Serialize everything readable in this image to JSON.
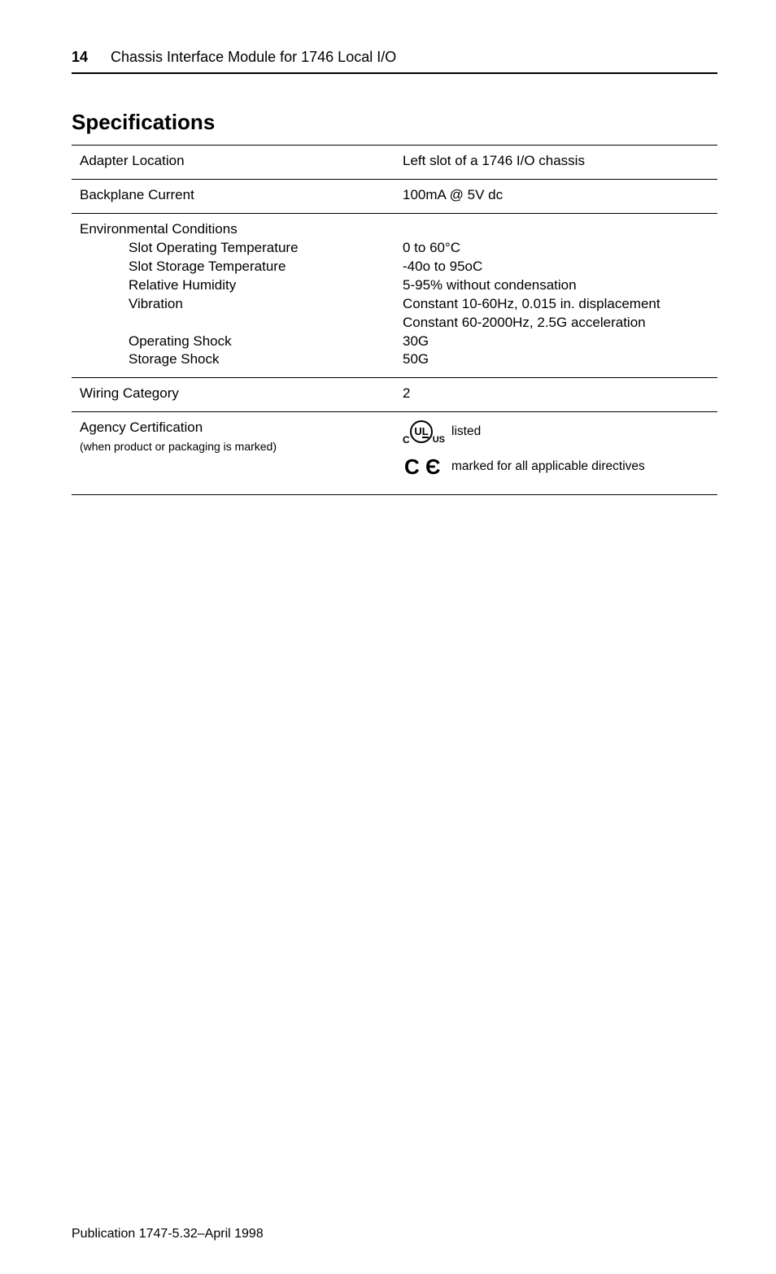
{
  "header": {
    "page_number": "14",
    "title": "Chassis Interface Module for 1746 Local I/O"
  },
  "section_title": "Specifications",
  "rows": {
    "adapter": {
      "label": "Adapter Location",
      "value": "Left slot of a 1746 I/O chassis"
    },
    "backplane": {
      "label": "Backplane Current",
      "value": "100mA @ 5V dc"
    },
    "env": {
      "label": "Environmental Conditions",
      "items": {
        "slot_op": "Slot Operating Temperature",
        "slot_storage": "Slot Storage Temperature",
        "rel_humidity": "Relative Humidity",
        "vibration": "Vibration",
        "spacer": " ",
        "op_shock": "Operating Shock",
        "storage_shock": "Storage Shock"
      },
      "values": {
        "v1": "0 to 60°C",
        "v2": "-40o to 95oC",
        "v3": "5-95% without condensation",
        "v4": "Constant 10-60Hz, 0.015 in. displacement",
        "v5": "Constant 60-2000Hz, 2.5G acceleration",
        "v6": "30G",
        "v7": "50G"
      }
    },
    "wiring": {
      "label": "Wiring Category",
      "value": "2"
    },
    "agency": {
      "label": "Agency Certification",
      "sublabel": "(when product or packaging is marked)",
      "ul_text": "listed",
      "ce_text": "marked for all applicable directives"
    }
  },
  "footer": "Publication 1747-5.32–April 1998",
  "marks": {
    "ul_u": "U",
    "ul_l": "L",
    "ul_c": "C",
    "ul_us": "US",
    "ce": "C Є"
  }
}
